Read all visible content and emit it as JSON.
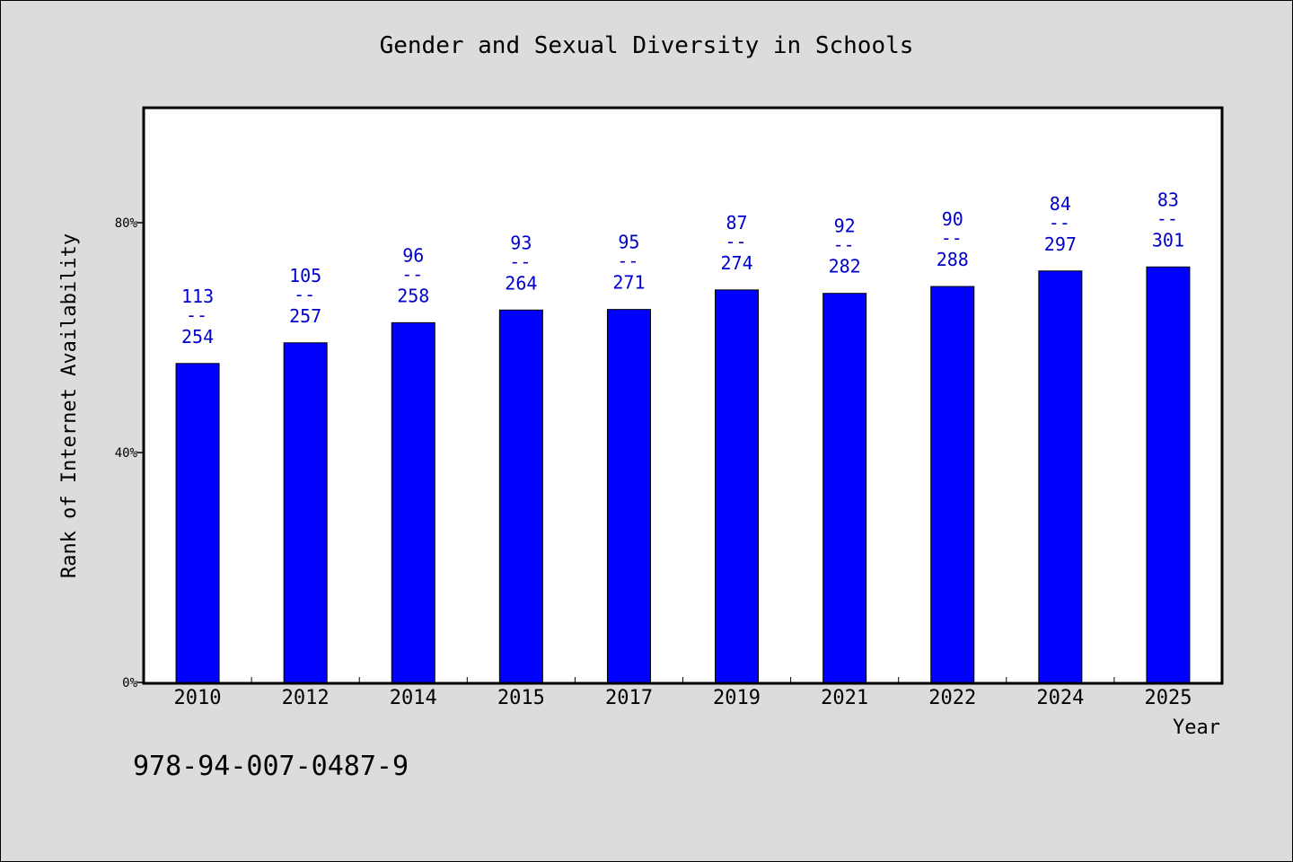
{
  "chart_data": {
    "type": "bar",
    "title": "Gender and Sexual Diversity in Schools",
    "xlabel": "Year",
    "ylabel": "Rank of Internet Availability",
    "categories": [
      "2010",
      "2012",
      "2014",
      "2015",
      "2017",
      "2019",
      "2021",
      "2022",
      "2024",
      "2025"
    ],
    "values": [
      55.5,
      59.1,
      62.6,
      64.8,
      64.9,
      68.3,
      67.7,
      68.9,
      71.6,
      72.3
    ],
    "ylim": [
      0,
      100
    ],
    "yticks": [
      0,
      40,
      80
    ],
    "ytick_labels": [
      "0%",
      "40%",
      "80%"
    ],
    "bar_labels": [
      {
        "top": "113",
        "sep": "--",
        "bottom": "254"
      },
      {
        "top": "105",
        "sep": "--",
        "bottom": "257"
      },
      {
        "top": "96",
        "sep": "--",
        "bottom": "258"
      },
      {
        "top": "93",
        "sep": "--",
        "bottom": "264"
      },
      {
        "top": "95",
        "sep": "--",
        "bottom": "271"
      },
      {
        "top": "87",
        "sep": "--",
        "bottom": "274"
      },
      {
        "top": "92",
        "sep": "--",
        "bottom": "282"
      },
      {
        "top": "90",
        "sep": "--",
        "bottom": "288"
      },
      {
        "top": "84",
        "sep": "--",
        "bottom": "297"
      },
      {
        "top": "83",
        "sep": "--",
        "bottom": "301"
      }
    ],
    "bar_color": "#0000ff",
    "label_color": "#0000cc",
    "grid": false
  },
  "footer": {
    "code": "978-94-007-0487-9"
  }
}
